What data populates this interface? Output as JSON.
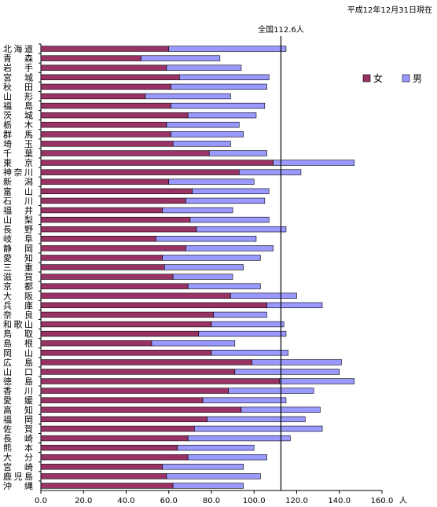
{
  "note": "平成12年12月31日現在",
  "chart_data": {
    "type": "bar",
    "orientation": "horizontal",
    "stacked": true,
    "categories": [
      "北海道",
      "青森",
      "岩手",
      "宮城",
      "秋田",
      "山形",
      "福島",
      "茨城",
      "栃木",
      "群馬",
      "埼玉",
      "千葉",
      "東京",
      "神奈川",
      "新潟",
      "富山",
      "石川",
      "福井",
      "山梨",
      "長野",
      "岐阜",
      "静岡",
      "愛知",
      "三重",
      "滋賀",
      "京都",
      "大阪",
      "兵庫",
      "奈良",
      "和歌山",
      "鳥取",
      "島根",
      "岡山",
      "広島",
      "山口",
      "徳島",
      "香川",
      "愛媛",
      "高知",
      "福岡",
      "佐賀",
      "長崎",
      "熊本",
      "大分",
      "宮崎",
      "鹿児島",
      "沖縄"
    ],
    "series": [
      {
        "name": "女",
        "color": "#993366",
        "values": [
          60,
          47,
          59,
          65,
          61,
          49,
          61,
          69,
          59,
          61,
          62,
          79,
          109,
          93,
          60,
          71,
          68,
          57,
          70,
          73,
          54,
          68,
          57,
          58,
          62,
          69,
          89,
          106,
          81,
          80,
          74,
          52,
          80,
          99,
          91,
          112,
          88,
          76,
          94,
          78,
          72,
          69,
          64,
          69,
          57,
          59,
          62
        ]
      },
      {
        "name": "男",
        "color": "#9999FF",
        "values": [
          55,
          37,
          35,
          42,
          45,
          40,
          44,
          32,
          34,
          34,
          27,
          27,
          38,
          29,
          40,
          36,
          37,
          33,
          37,
          42,
          47,
          41,
          46,
          37,
          28,
          34,
          31,
          26,
          25,
          34,
          41,
          39,
          36,
          42,
          49,
          35,
          40,
          39,
          37,
          46,
          60,
          48,
          36,
          37,
          38,
          44,
          33
        ]
      }
    ],
    "reference_line": {
      "value": 112.6,
      "label": "全国112.6人"
    },
    "xlim": [
      0,
      160
    ],
    "xticks": [
      0,
      20,
      40,
      60,
      80,
      100,
      120,
      140,
      160
    ],
    "xtick_labels": [
      "0.0",
      "20.0",
      "40.0",
      "60.0",
      "80.0",
      "100.0",
      "120.0",
      "140.0",
      "160.0"
    ],
    "x_unit": "人",
    "legend_position": "top-right",
    "grid": false
  }
}
